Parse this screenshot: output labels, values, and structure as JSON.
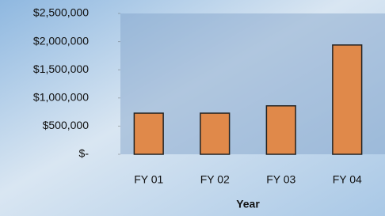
{
  "chart_data": {
    "type": "bar",
    "x_label": "Year",
    "categories": [
      "FY 01",
      "FY 02",
      "FY 03",
      "FY 04"
    ],
    "values": [
      730000,
      730000,
      860000,
      1940000
    ],
    "color": "#e0894a",
    "ylim": [
      0,
      2500000
    ],
    "yticks": [
      {
        "value": 0,
        "label": "$-"
      },
      {
        "value": 500000,
        "label": "$500,000"
      },
      {
        "value": 1000000,
        "label": "$1,000,000"
      },
      {
        "value": 1500000,
        "label": "$1,500,000"
      },
      {
        "value": 2000000,
        "label": "$2,000,000"
      },
      {
        "value": 2500000,
        "label": "$2,500,000"
      }
    ]
  }
}
